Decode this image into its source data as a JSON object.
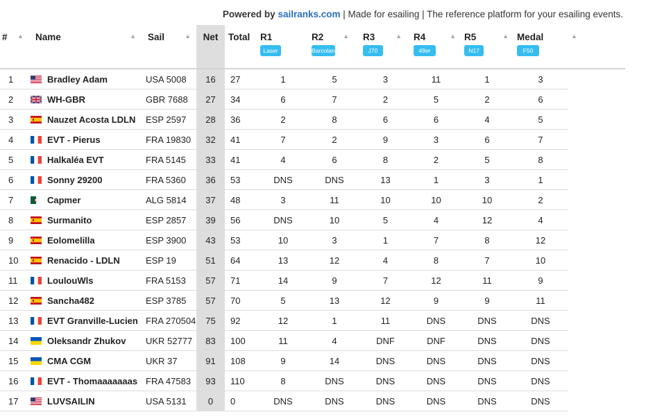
{
  "header": {
    "powered_label": "Powered by",
    "brand": "sailranks.com",
    "tagline": "| Made for esailing | The reference platform for your esailing events."
  },
  "columns": {
    "rank": "#",
    "name": "Name",
    "sail": "Sail",
    "net": "Net",
    "total": "Total",
    "races": [
      {
        "label": "R1",
        "class": "Laser"
      },
      {
        "label": "R2",
        "class": "Barcolana"
      },
      {
        "label": "R3",
        "class": "J70"
      },
      {
        "label": "R4",
        "class": "49er"
      },
      {
        "label": "R5",
        "class": "N17"
      },
      {
        "label": "Medal",
        "class": "F50"
      }
    ]
  },
  "sort_icon": "sort-arrow-icon",
  "rows": [
    {
      "rank": "1",
      "flag": "us-flag-icon",
      "name": "Bradley Adam",
      "sail": "USA 5008",
      "net": "16",
      "total": "27",
      "races": [
        "1",
        "5",
        "3",
        "11",
        "1",
        "3"
      ]
    },
    {
      "rank": "2",
      "flag": "uk-flag-icon",
      "name": "WH-GBR",
      "sail": "GBR 7688",
      "net": "27",
      "total": "34",
      "races": [
        "6",
        "7",
        "2",
        "5",
        "2",
        "6"
      ]
    },
    {
      "rank": "3",
      "flag": "es-flag-icon",
      "name": "Nauzet Acosta LDLN",
      "sail": "ESP 2597",
      "net": "28",
      "total": "36",
      "races": [
        "2",
        "8",
        "6",
        "6",
        "4",
        "5"
      ]
    },
    {
      "rank": "4",
      "flag": "fr-flag-icon",
      "name": "EVT - Pierus",
      "sail": "FRA 19830",
      "net": "32",
      "total": "41",
      "races": [
        "7",
        "2",
        "9",
        "3",
        "6",
        "7"
      ]
    },
    {
      "rank": "5",
      "flag": "fr-flag-icon",
      "name": "Halkaléa EVT",
      "sail": "FRA 5145",
      "net": "33",
      "total": "41",
      "races": [
        "4",
        "6",
        "8",
        "2",
        "5",
        "8"
      ]
    },
    {
      "rank": "6",
      "flag": "fr-flag-icon",
      "name": "Sonny 29200",
      "sail": "FRA 5360",
      "net": "36",
      "total": "53",
      "races": [
        "DNS",
        "DNS",
        "13",
        "1",
        "3",
        "1"
      ]
    },
    {
      "rank": "7",
      "flag": "dz-flag-icon",
      "name": "Capmer",
      "sail": "ALG 5814",
      "net": "37",
      "total": "48",
      "races": [
        "3",
        "11",
        "10",
        "10",
        "10",
        "2"
      ]
    },
    {
      "rank": "8",
      "flag": "es-flag-icon",
      "name": "Surmanito",
      "sail": "ESP 2857",
      "net": "39",
      "total": "56",
      "races": [
        "DNS",
        "10",
        "5",
        "4",
        "12",
        "4"
      ]
    },
    {
      "rank": "9",
      "flag": "es-flag-icon",
      "name": "Eolomelilla",
      "sail": "ESP 3900",
      "net": "43",
      "total": "53",
      "races": [
        "10",
        "3",
        "1",
        "7",
        "8",
        "12"
      ]
    },
    {
      "rank": "10",
      "flag": "es-flag-icon",
      "name": "Renacido - LDLN",
      "sail": "ESP 19",
      "net": "51",
      "total": "64",
      "races": [
        "13",
        "12",
        "4",
        "8",
        "7",
        "10"
      ]
    },
    {
      "rank": "11",
      "flag": "fr-flag-icon",
      "name": "LoulouWls",
      "sail": "FRA 5153",
      "net": "57",
      "total": "71",
      "races": [
        "14",
        "9",
        "7",
        "12",
        "11",
        "9"
      ]
    },
    {
      "rank": "12",
      "flag": "es-flag-icon",
      "name": "Sancha482",
      "sail": "ESP 3785",
      "net": "57",
      "total": "70",
      "races": [
        "5",
        "13",
        "12",
        "9",
        "9",
        "11"
      ]
    },
    {
      "rank": "13",
      "flag": "fr-flag-icon",
      "name": "EVT Granville-Lucien",
      "sail": "FRA 270504",
      "net": "75",
      "total": "92",
      "races": [
        "12",
        "1",
        "11",
        "DNS",
        "DNS",
        "DNS"
      ]
    },
    {
      "rank": "14",
      "flag": "ua-flag-icon",
      "name": "Oleksandr Zhukov",
      "sail": "UKR 52777",
      "net": "83",
      "total": "100",
      "races": [
        "11",
        "4",
        "DNF",
        "DNF",
        "DNS",
        "DNS"
      ]
    },
    {
      "rank": "15",
      "flag": "ua-flag-icon",
      "name": "CMA CGM",
      "sail": "UKR 37",
      "net": "91",
      "total": "108",
      "races": [
        "9",
        "14",
        "DNS",
        "DNS",
        "DNS",
        "DNS"
      ]
    },
    {
      "rank": "16",
      "flag": "fr-flag-icon",
      "name": "EVT - Thomaaaaaaas",
      "sail": "FRA 47583",
      "net": "93",
      "total": "110",
      "races": [
        "8",
        "DNS",
        "DNS",
        "DNS",
        "DNS",
        "DNS"
      ]
    },
    {
      "rank": "17",
      "flag": "us-flag-icon",
      "name": "LUVSAILIN",
      "sail": "USA 5131",
      "net": "0",
      "total": "0",
      "races": [
        "DNS",
        "DNS",
        "DNS",
        "DNS",
        "DNS",
        "DNS"
      ]
    }
  ]
}
